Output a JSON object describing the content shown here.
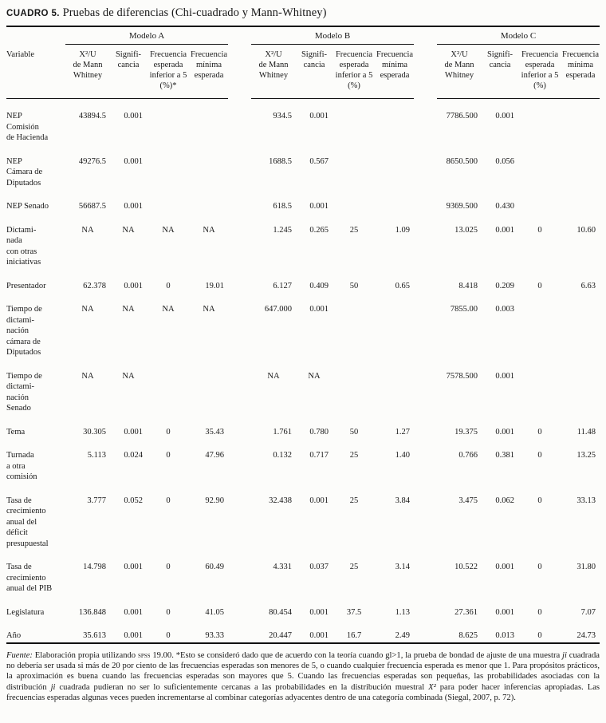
{
  "title": {
    "label": "CUADRO 5.",
    "text": "Pruebas de diferencias (Chi-cuadrado y Mann-Whitney)"
  },
  "table": {
    "groups": [
      "Modelo A",
      "Modelo B",
      "Modelo C"
    ],
    "variable_header": "Variable",
    "headers_a": [
      "X²/U\nde Mann\nWhitney",
      "Signifi-\ncancia",
      "Frecuencia\nesperada\ninferior a 5\n(%)*",
      "Frecuencia\nmínima\nesperada"
    ],
    "headers_b": [
      "X²/U\nde Mann\nWhitney",
      "Signifi-\ncancia",
      "Frecuencia\nesperada\ninferior a 5\n(%)",
      "Frecuencia\nmínima\nesperada"
    ],
    "headers_c": [
      "X²/U\nde Mann\nWhitney",
      "Signifi-\ncancia",
      "Frecuencia\nesperada\ninferior a 5\n(%)",
      "Frecuencia\nmínima\nesperada"
    ],
    "rows": [
      {
        "variable": "NEP\nComisión\nde Hacienda",
        "values": [
          "43894.5",
          "0.001",
          "",
          "",
          "934.5",
          "0.001",
          "",
          "",
          "7786.500",
          "0.001",
          "",
          ""
        ]
      },
      {
        "variable": "NEP\nCámara de\nDiputados",
        "values": [
          "49276.5",
          "0.001",
          "",
          "",
          "1688.5",
          "0.567",
          "",
          "",
          "8650.500",
          "0.056",
          "",
          ""
        ]
      },
      {
        "variable": "NEP Senado",
        "values": [
          "56687.5",
          "0.001",
          "",
          "",
          "618.5",
          "0.001",
          "",
          "",
          "9369.500",
          "0.430",
          "",
          ""
        ]
      },
      {
        "variable": "Dictami-\nnada\ncon otras\niniciativas",
        "values": [
          "NA",
          "NA",
          "NA",
          "NA",
          "1.245",
          "0.265",
          "25",
          "1.09",
          "13.025",
          "0.001",
          "0",
          "10.60"
        ]
      },
      {
        "variable": "Presentador",
        "values": [
          "62.378",
          "0.001",
          "0",
          "19.01",
          "6.127",
          "0.409",
          "50",
          "0.65",
          "8.418",
          "0.209",
          "0",
          "6.63"
        ]
      },
      {
        "variable": "Tiempo de\ndictami-\nnación\ncámara de\nDiputados",
        "values": [
          "NA",
          "NA",
          "NA",
          "NA",
          "647.000",
          "0.001",
          "",
          "",
          "7855.00",
          "0.003",
          "",
          ""
        ]
      },
      {
        "variable": "Tiempo de\ndictami-\nnación\nSenado",
        "values": [
          "NA",
          "NA",
          "",
          "",
          "NA",
          "NA",
          "",
          "",
          "7578.500",
          "0.001",
          "",
          ""
        ]
      },
      {
        "variable": "Tema",
        "values": [
          "30.305",
          "0.001",
          "0",
          "35.43",
          "1.761",
          "0.780",
          "50",
          "1.27",
          "19.375",
          "0.001",
          "0",
          "11.48"
        ]
      },
      {
        "variable": "Turnada\na otra\ncomisión",
        "values": [
          "5.113",
          "0.024",
          "0",
          "47.96",
          "0.132",
          "0.717",
          "25",
          "1.40",
          "0.766",
          "0.381",
          "0",
          "13.25"
        ]
      },
      {
        "variable": "Tasa de\ncrecimiento\nanual del\ndéficit\npresupuestal",
        "values": [
          "3.777",
          "0.052",
          "0",
          "92.90",
          "32.438",
          "0.001",
          "25",
          "3.84",
          "3.475",
          "0.062",
          "0",
          "33.13"
        ]
      },
      {
        "variable": "Tasa de\ncrecimiento\nanual del PIB",
        "values": [
          "14.798",
          "0.001",
          "0",
          "60.49",
          "4.331",
          "0.037",
          "25",
          "3.14",
          "10.522",
          "0.001",
          "0",
          "31.80"
        ]
      },
      {
        "variable": "Legislatura",
        "values": [
          "136.848",
          "0.001",
          "0",
          "41.05",
          "80.454",
          "0.001",
          "37.5",
          "1.13",
          "27.361",
          "0.001",
          "0",
          "7.07"
        ]
      },
      {
        "variable": "Año",
        "values": [
          "35.613",
          "0.001",
          "0",
          "93.33",
          "20.447",
          "0.001",
          "16.7",
          "2.49",
          "8.625",
          "0.013",
          "0",
          "24.73"
        ]
      }
    ]
  },
  "footnote": {
    "fuente_label": "Fuente:",
    "seg1": " Elaboración propia utilizando ",
    "spss": "SPSS",
    "seg2": " 19.00. *Esto se consideró dado que de acuerdo con la teoría cuando gl>1, la prueba de bondad de ajuste de una muestra ",
    "ji1": "ji",
    "seg3": " cuadrada no debería ser usada si más de 20 por ciento de las frecuencias esperadas son menores de 5, o cuando cualquier frecuencia esperada es menor que 1. Para propósitos prácticos, la aproximación es buena cuando las frecuencias esperadas son mayores que 5. Cuando las frecuencias esperadas son pequeñas, las probabilidades asociadas con la distribución ",
    "ji2": "ji",
    "seg4": " cuadrada pudieran no ser lo suficientemente cercanas a las probabilidades en la distribución muestral ",
    "x2": "X²",
    "seg5": " para poder hacer inferencias apropiadas. Las frecuencias esperadas algunas veces pueden incrementarse al combinar categorías adyacentes dentro de una categoría combinada (Siegal, 2007, p. 72)."
  }
}
